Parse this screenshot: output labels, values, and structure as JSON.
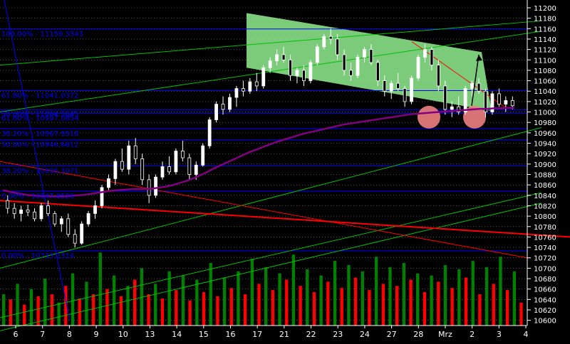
{
  "chart_data": {
    "type": "candlestick",
    "theme": {
      "background": "#000000",
      "text": "#ffffff",
      "grid": "#808080",
      "bull": "#ffffff",
      "bear": "#000000",
      "ma": "#800080",
      "volume_up": "#008000",
      "volume_down": "#ff0000",
      "fib": "#0000ff",
      "trend_green": "#00c000",
      "trend_red": "#ff0000",
      "channel_fill": "#90ee90",
      "highlight": "#f08080",
      "arrow": "#000000"
    },
    "y_axis": {
      "min": 10590,
      "max": 11215,
      "step": 20,
      "tick_labels": [
        "11200",
        "11180",
        "11160",
        "11140",
        "11120",
        "11100",
        "11080",
        "11060",
        "11040",
        "11020",
        "11000",
        "10980",
        "10960",
        "10940",
        "10920",
        "10900",
        "10880",
        "10860",
        "10840",
        "10820",
        "10800",
        "10780",
        "10760",
        "10740",
        "10720",
        "10700",
        "10680",
        "10660",
        "10640",
        "10620",
        "10600"
      ]
    },
    "x_axis": {
      "tick_labels": [
        "6",
        "7",
        "8",
        "9",
        "10",
        "13",
        "14",
        "15",
        "16",
        "17",
        "21",
        "22",
        "23",
        "24",
        "27",
        "28",
        "Mrz",
        "2",
        "3",
        "4"
      ]
    },
    "fib_levels": [
      {
        "label": "100.00% - 11159.3343",
        "value": 11159.33
      },
      {
        "label": "61.80% - 11041.0372",
        "value": 11041.04
      },
      {
        "label": "50.00% - 11004.5645",
        "value": 11004.56
      },
      {
        "label": "61.80% - 10997.0854",
        "value": 10997.09
      },
      {
        "label": "38.20% - 10967.9518",
        "value": 10967.95
      },
      {
        "label": "50.00% - 10946.6812",
        "value": 10946.68
      },
      {
        "label": "38.20% - 10896.3071",
        "value": 10896.31
      },
      {
        "label": "0.00% - 10847.8526",
        "value": 10847.85
      },
      {
        "label": "0.00% - 10733.2314",
        "value": 10733.23
      }
    ],
    "candles": [
      [
        10830,
        10840,
        10805,
        10815
      ],
      [
        10815,
        10825,
        10795,
        10805
      ],
      [
        10805,
        10820,
        10790,
        10812
      ],
      [
        10812,
        10822,
        10800,
        10808
      ],
      [
        10808,
        10815,
        10790,
        10795
      ],
      [
        10795,
        10825,
        10790,
        10820
      ],
      [
        10820,
        10830,
        10800,
        10805
      ],
      [
        10805,
        10810,
        10780,
        10785
      ],
      [
        10785,
        10800,
        10770,
        10795
      ],
      [
        10795,
        10805,
        10760,
        10765
      ],
      [
        10765,
        10775,
        10740,
        10748
      ],
      [
        10748,
        10790,
        10745,
        10785
      ],
      [
        10785,
        10810,
        10780,
        10805
      ],
      [
        10805,
        10830,
        10795,
        10820
      ],
      [
        10820,
        10860,
        10815,
        10855
      ],
      [
        10855,
        10880,
        10850,
        10872
      ],
      [
        10872,
        10910,
        10860,
        10905
      ],
      [
        10905,
        10930,
        10885,
        10890
      ],
      [
        10890,
        10945,
        10880,
        10935
      ],
      [
        10935,
        10950,
        10900,
        10910
      ],
      [
        10910,
        10920,
        10860,
        10870
      ],
      [
        10870,
        10880,
        10825,
        10840
      ],
      [
        10840,
        10880,
        10835,
        10875
      ],
      [
        10875,
        10905,
        10870,
        10895
      ],
      [
        10895,
        10915,
        10880,
        10885
      ],
      [
        10885,
        10930,
        10880,
        10925
      ],
      [
        10925,
        10945,
        10905,
        10912
      ],
      [
        10912,
        10920,
        10870,
        10880
      ],
      [
        10880,
        10905,
        10870,
        10898
      ],
      [
        10898,
        10940,
        10895,
        10935
      ],
      [
        10935,
        10990,
        10930,
        10985
      ],
      [
        10985,
        11020,
        10980,
        11015
      ],
      [
        11015,
        11030,
        10995,
        11005
      ],
      [
        11005,
        11035,
        11000,
        11028
      ],
      [
        11028,
        11050,
        11010,
        11045
      ],
      [
        11045,
        11060,
        11030,
        11040
      ],
      [
        11040,
        11065,
        11035,
        11058
      ],
      [
        11058,
        11075,
        11040,
        11050
      ],
      [
        11050,
        11090,
        11045,
        11085
      ],
      [
        11085,
        11105,
        11075,
        11098
      ],
      [
        11098,
        11120,
        11090,
        11110
      ],
      [
        11110,
        11125,
        11095,
        11100
      ],
      [
        11100,
        11110,
        11060,
        11070
      ],
      [
        11070,
        11085,
        11055,
        11080
      ],
      [
        11080,
        11090,
        11050,
        11060
      ],
      [
        11060,
        11100,
        11055,
        11095
      ],
      [
        11095,
        11130,
        11090,
        11125
      ],
      [
        11125,
        11150,
        11120,
        11145
      ],
      [
        11145,
        11160,
        11130,
        11140
      ],
      [
        11140,
        11150,
        11100,
        11110
      ],
      [
        11110,
        11120,
        11070,
        11080
      ],
      [
        11080,
        11095,
        11060,
        11070
      ],
      [
        11070,
        11110,
        11065,
        11105
      ],
      [
        11105,
        11125,
        11095,
        11120
      ],
      [
        11120,
        11130,
        11090,
        11095
      ],
      [
        11095,
        11100,
        11050,
        11060
      ],
      [
        11060,
        11070,
        11030,
        11040
      ],
      [
        11040,
        11060,
        11025,
        11055
      ],
      [
        11055,
        11075,
        11040,
        11045
      ],
      [
        11045,
        11050,
        11010,
        11020
      ],
      [
        11020,
        11070,
        11015,
        11065
      ],
      [
        11065,
        11110,
        11060,
        11105
      ],
      [
        11105,
        11130,
        11095,
        11120
      ],
      [
        11120,
        11125,
        11080,
        11090
      ],
      [
        11090,
        11100,
        11040,
        11050
      ],
      [
        11050,
        11060,
        10995,
        11005
      ],
      [
        11005,
        11020,
        10990,
        11010
      ],
      [
        11010,
        11030,
        10995,
        11000
      ],
      [
        11000,
        11050,
        10995,
        11045
      ],
      [
        11045,
        11060,
        11030,
        11055
      ],
      [
        11055,
        11065,
        11035,
        11040
      ],
      [
        11040,
        11045,
        10990,
        11000
      ],
      [
        11000,
        11040,
        10995,
        11035
      ],
      [
        11035,
        11045,
        11010,
        11015
      ],
      [
        11015,
        11030,
        11000,
        11022
      ],
      [
        11022,
        11030,
        11005,
        11012
      ]
    ],
    "ma_series": [
      10850,
      10847,
      10844,
      10842,
      10840,
      10839,
      10838,
      10838,
      10838,
      10838,
      10839,
      10840,
      10841,
      10843,
      10845,
      10847,
      10849,
      10850,
      10851,
      10852,
      10852,
      10852,
      10853,
      10855,
      10857,
      10860,
      10864,
      10868,
      10873,
      10879,
      10885,
      10892,
      10898,
      10904,
      10910,
      10916,
      10922,
      10927,
      10932,
      10937,
      10942,
      10946,
      10950,
      10954,
      10958,
      10961,
      10964,
      10967,
      10970,
      10973,
      10976,
      10978,
      10980,
      10982,
      10984,
      10986,
      10988,
      10990,
      10992,
      10994,
      10996,
      10997,
      10998,
      10999,
      11000,
      11001,
      11002,
      11003,
      11004,
      11005,
      11006,
      11006,
      11007,
      11007,
      11008,
      11008
    ],
    "volume": [
      [
        30,
        "up"
      ],
      [
        25,
        "down"
      ],
      [
        40,
        "up"
      ],
      [
        20,
        "down"
      ],
      [
        35,
        "up"
      ],
      [
        28,
        "down"
      ],
      [
        45,
        "up"
      ],
      [
        30,
        "down"
      ],
      [
        22,
        "up"
      ],
      [
        38,
        "down"
      ],
      [
        50,
        "up"
      ],
      [
        26,
        "down"
      ],
      [
        42,
        "up"
      ],
      [
        30,
        "down"
      ],
      [
        70,
        "up"
      ],
      [
        35,
        "down"
      ],
      [
        48,
        "up"
      ],
      [
        28,
        "down"
      ],
      [
        38,
        "up"
      ],
      [
        44,
        "down"
      ],
      [
        55,
        "up"
      ],
      [
        30,
        "down"
      ],
      [
        40,
        "up"
      ],
      [
        26,
        "down"
      ],
      [
        52,
        "up"
      ],
      [
        34,
        "down"
      ],
      [
        48,
        "up"
      ],
      [
        24,
        "down"
      ],
      [
        44,
        "up"
      ],
      [
        32,
        "down"
      ],
      [
        60,
        "up"
      ],
      [
        28,
        "down"
      ],
      [
        46,
        "up"
      ],
      [
        36,
        "down"
      ],
      [
        52,
        "up"
      ],
      [
        30,
        "down"
      ],
      [
        64,
        "up"
      ],
      [
        40,
        "down"
      ],
      [
        56,
        "up"
      ],
      [
        34,
        "down"
      ],
      [
        50,
        "up"
      ],
      [
        44,
        "down"
      ],
      [
        68,
        "up"
      ],
      [
        38,
        "down"
      ],
      [
        54,
        "up"
      ],
      [
        32,
        "down"
      ],
      [
        48,
        "up"
      ],
      [
        42,
        "down"
      ],
      [
        62,
        "up"
      ],
      [
        36,
        "down"
      ],
      [
        58,
        "up"
      ],
      [
        46,
        "down"
      ],
      [
        52,
        "up"
      ],
      [
        34,
        "down"
      ],
      [
        66,
        "up"
      ],
      [
        40,
        "down"
      ],
      [
        56,
        "up"
      ],
      [
        38,
        "down"
      ],
      [
        60,
        "up"
      ],
      [
        44,
        "down"
      ],
      [
        50,
        "up"
      ],
      [
        32,
        "down"
      ],
      [
        48,
        "up"
      ],
      [
        42,
        "down"
      ],
      [
        58,
        "up"
      ],
      [
        36,
        "down"
      ],
      [
        54,
        "up"
      ],
      [
        46,
        "down"
      ],
      [
        62,
        "up"
      ],
      [
        30,
        "down"
      ],
      [
        56,
        "up"
      ],
      [
        40,
        "down"
      ],
      [
        66,
        "up"
      ],
      [
        34,
        "down"
      ],
      [
        52,
        "up"
      ],
      [
        22,
        "down"
      ]
    ],
    "volume_max": 75,
    "trendlines_green": [
      [
        [
          0,
          11225
        ],
        [
          120,
          11240
        ]
      ],
      [
        [
          0,
          11090
        ],
        [
          760,
          11175
        ]
      ],
      [
        [
          0,
          11000
        ],
        [
          760,
          11155
        ]
      ],
      [
        [
          0,
          10700
        ],
        [
          760,
          10970
        ]
      ],
      [
        [
          0,
          10605
        ],
        [
          760,
          10845
        ]
      ],
      [
        [
          0,
          10580
        ],
        [
          760,
          10825
        ]
      ]
    ],
    "trendlines_red": [
      [
        [
          0,
          10830
        ],
        [
          800,
          10760
        ]
      ],
      [
        [
          0,
          10905
        ],
        [
          740,
          10720
        ]
      ],
      [
        [
          578,
          11135
        ],
        [
          710,
          11008
        ]
      ]
    ],
    "blue_line": [
      [
        5,
        11220
      ],
      [
        98,
        10600
      ]
    ],
    "channel": [
      [
        346,
        11190
      ],
      [
        676,
        11115
      ],
      [
        690,
        11002
      ],
      [
        346,
        11085
      ]
    ],
    "highlights": [
      {
        "x": 602,
        "value": 10990
      },
      {
        "x": 666,
        "value": 10990
      }
    ],
    "arrow": {
      "from": [
        662,
        11012
      ],
      "to": [
        672,
        11110
      ]
    }
  }
}
